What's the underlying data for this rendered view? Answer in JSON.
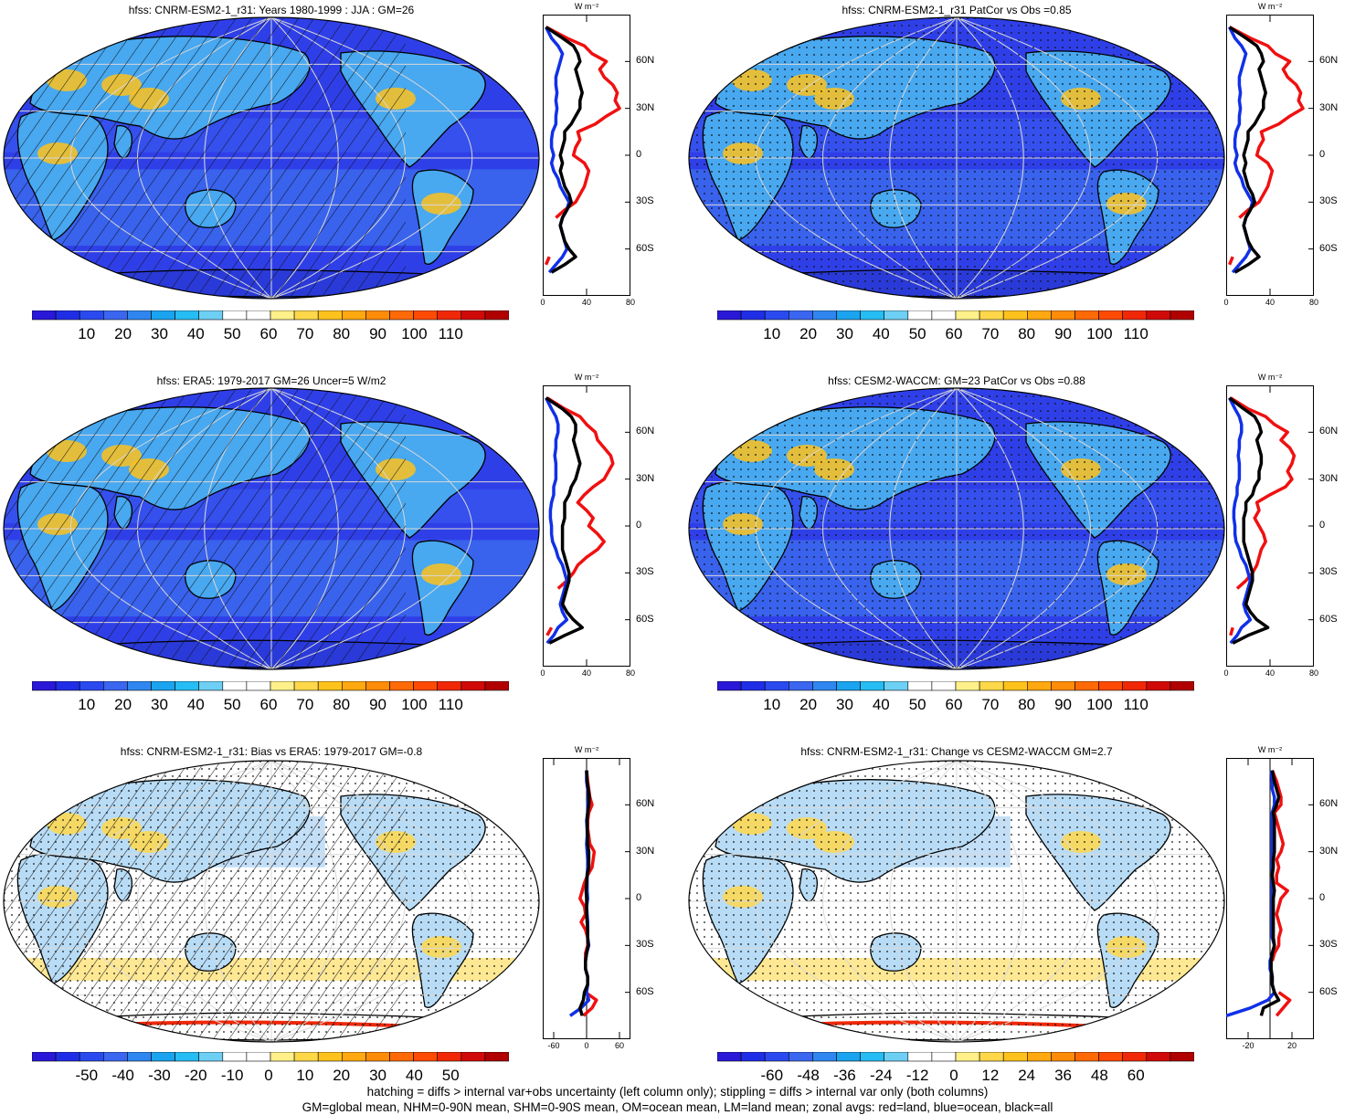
{
  "footer": {
    "line1": "hatching = diffs > internal var+obs uncertainty (left column only); stippling = diffs > internal var only (both columns)",
    "line2": "GM=global mean, NHM=0-90N mean, SHM=0-90S mean, OM=ocean mean, LM=land mean; zonal avgs: red=land, blue=ocean, black=all"
  },
  "colorbars": {
    "abs": {
      "labels": [
        "10",
        "20",
        "30",
        "40",
        "50",
        "60",
        "70",
        "80",
        "90",
        "100",
        "110"
      ],
      "colors": [
        "#2a18d8",
        "#1f2ee6",
        "#2a4af0",
        "#3a66f0",
        "#2f86f0",
        "#1aa4f0",
        "#26bcf4",
        "#6ecff4",
        "#ffffff",
        "#ffffff",
        "#fff08a",
        "#ffd84a",
        "#ffc21c",
        "#ffa810",
        "#ff8c08",
        "#ff6a06",
        "#ff4a04",
        "#f02808",
        "#d00a08",
        "#b00000"
      ]
    },
    "bias": {
      "labels": [
        "-50",
        "-40",
        "-30",
        "-20",
        "-10",
        "0",
        "10",
        "20",
        "30",
        "40",
        "50"
      ],
      "colors": [
        "#2a18d8",
        "#1f2ee6",
        "#2a4af0",
        "#3a66f0",
        "#2f86f0",
        "#1aa4f0",
        "#26bcf4",
        "#6ecff4",
        "#ffffff",
        "#ffffff",
        "#fff08a",
        "#ffd84a",
        "#ffc21c",
        "#ffa810",
        "#ff8c08",
        "#ff6a06",
        "#ff4a04",
        "#f02808",
        "#d00a08",
        "#b00000"
      ]
    },
    "change": {
      "labels": [
        "-60",
        "-48",
        "-36",
        "-24",
        "-12",
        "0",
        "12",
        "24",
        "36",
        "48",
        "60"
      ],
      "colors": [
        "#2a18d8",
        "#1f2ee6",
        "#2a4af0",
        "#3a66f0",
        "#2f86f0",
        "#1aa4f0",
        "#26bcf4",
        "#6ecff4",
        "#ffffff",
        "#ffffff",
        "#fff08a",
        "#ffd84a",
        "#ffc21c",
        "#ffa810",
        "#ff8c08",
        "#ff6a06",
        "#ff4a04",
        "#f02808",
        "#d00a08",
        "#b00000"
      ]
    }
  },
  "chart_data": [
    {
      "type": "heatmap",
      "title": "hfss: CNRM-ESM2-1_r31: Years 1980-1999 : JJA : GM=26",
      "colorbar": "abs",
      "style": "abs",
      "hatching": true,
      "stippling": false,
      "zonal": {
        "unit": "W m⁻²",
        "xlim": [
          0,
          80
        ],
        "xticks": [
          "0",
          "40",
          "80"
        ],
        "ylim": [
          -90,
          90
        ],
        "yticks": [
          "60N",
          "30N",
          "0",
          "30S",
          "60S"
        ],
        "lat": [
          82,
          75,
          70,
          65,
          60,
          55,
          50,
          45,
          40,
          35,
          30,
          25,
          20,
          15,
          10,
          5,
          0,
          -5,
          -10,
          -15,
          -20,
          -25,
          -30,
          -35,
          -40,
          -45,
          -50,
          -55,
          -60,
          -65,
          -70,
          -75,
          -80
        ],
        "land": [
          3,
          22,
          38,
          45,
          58,
          52,
          56,
          64,
          68,
          66,
          70,
          58,
          48,
          32,
          34,
          30,
          28,
          38,
          42,
          40,
          38,
          34,
          30,
          20,
          12,
          null,
          null,
          null,
          null,
          6,
          3,
          null,
          null
        ],
        "ocean": [
          3,
          8,
          14,
          18,
          16,
          14,
          12,
          12,
          13,
          12,
          13,
          12,
          12,
          9,
          8,
          8,
          10,
          8,
          10,
          14,
          16,
          20,
          24,
          22,
          18,
          16,
          18,
          20,
          22,
          18,
          12,
          6,
          null
        ],
        "all": [
          3,
          18,
          28,
          32,
          34,
          30,
          32,
          34,
          36,
          34,
          34,
          30,
          26,
          20,
          20,
          18,
          16,
          18,
          16,
          18,
          20,
          24,
          26,
          22,
          18,
          16,
          18,
          20,
          24,
          30,
          20,
          8,
          null
        ]
      }
    },
    {
      "type": "heatmap",
      "title": "hfss: CNRM-ESM2-1_r31 PatCor vs Obs =0.85",
      "colorbar": "abs",
      "style": "abs",
      "hatching": false,
      "stippling": true,
      "zonal": {
        "unit": "W m⁻²",
        "xlim": [
          0,
          80
        ],
        "xticks": [
          "0",
          "40",
          "80"
        ],
        "ylim": [
          -90,
          90
        ],
        "yticks": [
          "60N",
          "30N",
          "0",
          "30S",
          "60S"
        ],
        "lat": [
          82,
          75,
          70,
          65,
          60,
          55,
          50,
          45,
          40,
          35,
          30,
          25,
          20,
          15,
          10,
          5,
          0,
          -5,
          -10,
          -15,
          -20,
          -25,
          -30,
          -35,
          -40,
          -45,
          -50,
          -55,
          -60,
          -65,
          -70,
          -75,
          -80
        ],
        "land": [
          3,
          22,
          38,
          45,
          58,
          52,
          56,
          64,
          68,
          66,
          70,
          58,
          48,
          32,
          34,
          30,
          28,
          38,
          42,
          40,
          38,
          34,
          30,
          20,
          12,
          null,
          null,
          null,
          null,
          6,
          3,
          null,
          null
        ],
        "ocean": [
          3,
          8,
          14,
          18,
          16,
          14,
          12,
          12,
          13,
          12,
          13,
          12,
          12,
          9,
          8,
          8,
          10,
          8,
          10,
          14,
          16,
          20,
          24,
          22,
          18,
          16,
          18,
          20,
          22,
          18,
          12,
          6,
          null
        ],
        "all": [
          3,
          18,
          28,
          32,
          34,
          30,
          32,
          34,
          36,
          34,
          34,
          30,
          26,
          20,
          20,
          18,
          16,
          18,
          16,
          18,
          20,
          24,
          26,
          22,
          18,
          16,
          18,
          20,
          24,
          30,
          20,
          8,
          null
        ]
      }
    },
    {
      "type": "heatmap",
      "title": "hfss: ERA5: 1979-2017 GM=26 Uncer=5 W/m2",
      "colorbar": "abs",
      "style": "abs",
      "hatching": true,
      "stippling": false,
      "zonal": {
        "unit": "W m⁻²",
        "xlim": [
          0,
          80
        ],
        "xticks": [
          "0",
          "40",
          "80"
        ],
        "ylim": [
          -90,
          90
        ],
        "yticks": [
          "60N",
          "30N",
          "0",
          "30S",
          "60S"
        ],
        "lat": [
          82,
          75,
          70,
          65,
          60,
          55,
          50,
          45,
          40,
          35,
          30,
          25,
          20,
          15,
          10,
          5,
          0,
          -5,
          -10,
          -15,
          -20,
          -25,
          -30,
          -35,
          -40,
          -45,
          -50,
          -55,
          -60,
          -65,
          -70,
          -75,
          -80
        ],
        "land": [
          4,
          20,
          34,
          40,
          48,
          50,
          56,
          62,
          64,
          60,
          56,
          46,
          38,
          32,
          40,
          46,
          42,
          50,
          56,
          50,
          40,
          32,
          28,
          22,
          14,
          null,
          null,
          null,
          null,
          8,
          4,
          null,
          null
        ],
        "ocean": [
          3,
          8,
          12,
          14,
          14,
          12,
          12,
          11,
          12,
          12,
          12,
          10,
          10,
          8,
          7,
          7,
          8,
          8,
          9,
          12,
          14,
          18,
          20,
          22,
          20,
          18,
          16,
          18,
          22,
          14,
          10,
          4,
          null
        ],
        "all": [
          3,
          18,
          26,
          30,
          30,
          28,
          30,
          32,
          34,
          32,
          30,
          26,
          24,
          20,
          20,
          20,
          18,
          18,
          18,
          18,
          20,
          22,
          24,
          24,
          22,
          20,
          18,
          22,
          28,
          36,
          20,
          6,
          null
        ]
      }
    },
    {
      "type": "heatmap",
      "title": "hfss: CESM2-WACCM: GM=23 PatCor vs Obs =0.88",
      "colorbar": "abs",
      "style": "abs",
      "hatching": false,
      "stippling": true,
      "zonal": {
        "unit": "W m⁻²",
        "xlim": [
          0,
          80
        ],
        "xticks": [
          "0",
          "40",
          "80"
        ],
        "ylim": [
          -90,
          90
        ],
        "yticks": [
          "60N",
          "30N",
          "0",
          "30S",
          "60S"
        ],
        "lat": [
          82,
          75,
          70,
          65,
          60,
          55,
          50,
          45,
          40,
          35,
          30,
          25,
          20,
          15,
          10,
          5,
          0,
          -5,
          -10,
          -15,
          -20,
          -25,
          -30,
          -35,
          -40,
          -45,
          -50,
          -55,
          -60,
          -65,
          -70,
          -75,
          -80
        ],
        "land": [
          4,
          20,
          36,
          44,
          56,
          50,
          58,
          62,
          60,
          56,
          60,
          54,
          40,
          28,
          30,
          26,
          30,
          34,
          36,
          32,
          30,
          28,
          24,
          18,
          10,
          null,
          null,
          null,
          null,
          6,
          4,
          null,
          null
        ],
        "ocean": [
          3,
          8,
          12,
          14,
          14,
          12,
          12,
          11,
          12,
          12,
          12,
          10,
          10,
          8,
          7,
          7,
          8,
          8,
          9,
          12,
          14,
          18,
          20,
          22,
          20,
          18,
          16,
          18,
          22,
          14,
          10,
          4,
          null
        ],
        "all": [
          3,
          16,
          26,
          30,
          32,
          28,
          30,
          32,
          32,
          30,
          30,
          26,
          24,
          18,
          18,
          16,
          16,
          16,
          16,
          18,
          20,
          22,
          24,
          24,
          22,
          20,
          18,
          22,
          28,
          38,
          20,
          6,
          null
        ]
      }
    },
    {
      "type": "heatmap",
      "title": "hfss: CNRM-ESM2-1_r31: Bias vs ERA5: 1979-2017 GM=-0.8",
      "colorbar": "bias",
      "style": "bias",
      "hatching": true,
      "stippling": true,
      "zonal": {
        "unit": "W m⁻²",
        "xlim": [
          -80,
          80
        ],
        "xticks": [
          "-60",
          "0",
          "60"
        ],
        "ylim": [
          -90,
          90
        ],
        "yticks": [
          "60N",
          "30N",
          "0",
          "30S",
          "60S"
        ],
        "lat": [
          82,
          75,
          70,
          65,
          60,
          55,
          50,
          45,
          40,
          35,
          30,
          25,
          20,
          15,
          10,
          5,
          0,
          -5,
          -10,
          -15,
          -20,
          -25,
          -30,
          -35,
          -40,
          -45,
          -50,
          -55,
          -60,
          -65,
          -70,
          -75,
          -80
        ],
        "land": [
          0,
          2,
          4,
          6,
          10,
          4,
          2,
          2,
          4,
          6,
          14,
          12,
          10,
          2,
          -4,
          -8,
          -12,
          -4,
          -2,
          -10,
          -2,
          2,
          2,
          -2,
          -2,
          null,
          null,
          null,
          -2,
          18,
          10,
          -6,
          null
        ],
        "ocean": [
          0,
          0,
          2,
          4,
          2,
          2,
          0,
          1,
          1,
          0,
          1,
          2,
          2,
          1,
          1,
          1,
          2,
          0,
          1,
          2,
          2,
          2,
          4,
          0,
          -2,
          -2,
          2,
          2,
          0,
          4,
          -10,
          -30,
          null
        ],
        "all": [
          0,
          1,
          3,
          5,
          4,
          2,
          1,
          1,
          2,
          2,
          4,
          4,
          4,
          1,
          0,
          -1,
          0,
          0,
          0,
          1,
          2,
          2,
          3,
          0,
          -2,
          -2,
          2,
          2,
          -4,
          -6,
          -12,
          -8,
          null
        ]
      }
    },
    {
      "type": "heatmap",
      "title": "hfss: CNRM-ESM2-1_r31: Change vs CESM2-WACCM GM=2.7",
      "colorbar": "change",
      "style": "change",
      "hatching": false,
      "stippling": true,
      "zonal": {
        "unit": "W m⁻²",
        "xlim": [
          -40,
          40
        ],
        "xticks": [
          "-20",
          "20"
        ],
        "ylim": [
          -90,
          90
        ],
        "yticks": [
          "60N",
          "30N",
          "0",
          "30S",
          "60S"
        ],
        "lat": [
          82,
          75,
          70,
          65,
          60,
          55,
          50,
          45,
          40,
          35,
          30,
          25,
          20,
          15,
          10,
          5,
          0,
          -5,
          -10,
          -15,
          -20,
          -25,
          -30,
          -35,
          -40,
          -45,
          -50,
          -55,
          -60,
          -65,
          -70,
          -75,
          -80
        ],
        "land": [
          2,
          6,
          8,
          10,
          10,
          4,
          6,
          8,
          10,
          12,
          10,
          6,
          8,
          6,
          6,
          16,
          10,
          8,
          6,
          8,
          10,
          8,
          8,
          4,
          2,
          null,
          null,
          null,
          8,
          18,
          12,
          6,
          null
        ],
        "ocean": [
          1,
          2,
          2,
          4,
          4,
          2,
          2,
          2,
          2,
          2,
          2,
          2,
          2,
          2,
          2,
          2,
          2,
          2,
          2,
          2,
          2,
          2,
          4,
          2,
          0,
          0,
          2,
          2,
          4,
          -2,
          -18,
          -40,
          null
        ],
        "all": [
          2,
          4,
          6,
          8,
          6,
          3,
          4,
          4,
          4,
          4,
          4,
          3,
          3,
          2,
          3,
          4,
          3,
          3,
          3,
          3,
          3,
          3,
          4,
          2,
          1,
          1,
          2,
          2,
          4,
          8,
          -6,
          -8,
          null
        ]
      }
    }
  ]
}
